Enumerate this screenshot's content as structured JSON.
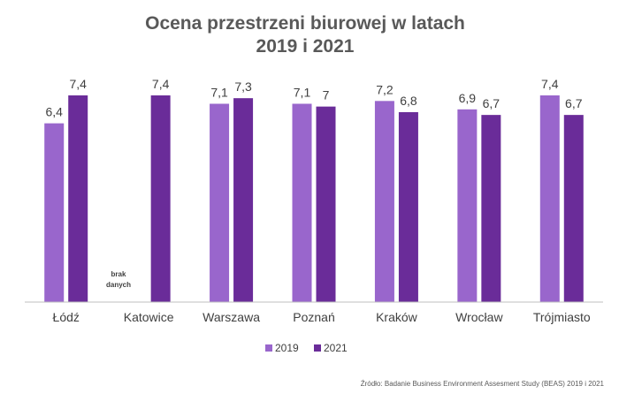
{
  "chart_data": {
    "type": "bar",
    "title_lines": [
      "Ocena przestrzeni biurowej w latach",
      "2019 i 2021"
    ],
    "categories": [
      "Łódź",
      "Katowice",
      "Warszawa",
      "Poznań",
      "Kraków",
      "Wrocław",
      "Trójmiasto"
    ],
    "series": [
      {
        "name": "2019",
        "color": "#9966cc",
        "values": [
          6.4,
          null,
          7.1,
          7.1,
          7.2,
          6.9,
          7.4
        ],
        "labels": [
          "6,4",
          "",
          "7,1",
          "7,1",
          "7,2",
          "6,9",
          "7,4"
        ]
      },
      {
        "name": "2021",
        "color": "#6a2c99",
        "values": [
          7.4,
          7.4,
          7.3,
          7.0,
          6.8,
          6.7,
          6.7
        ],
        "labels": [
          "7,4",
          "7,4",
          "7,3",
          "7",
          "6,8",
          "6,7",
          "6,7"
        ]
      }
    ],
    "missing_note": [
      "brak",
      "danych"
    ],
    "ylim": [
      0,
      7.4
    ],
    "grid": false,
    "legend_position": "bottom"
  },
  "source": "Źródło: Badanie Business Environment Assesment Study (BEAS) 2019 i 2021"
}
